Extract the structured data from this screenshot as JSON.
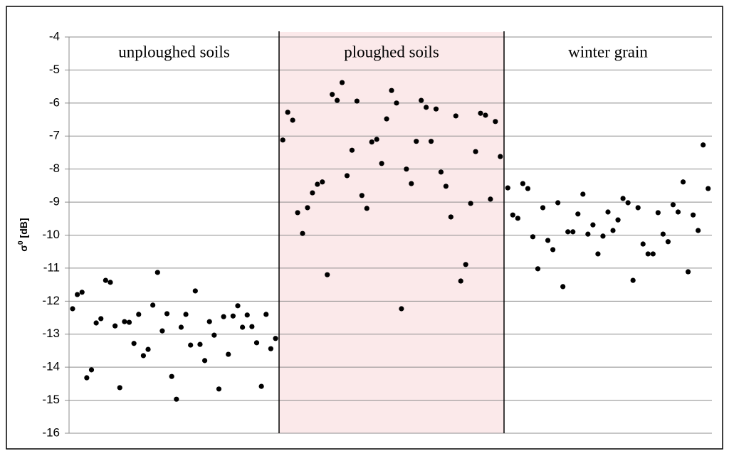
{
  "chart_data": {
    "type": "scatter",
    "y_label": {
      "symbol": "σ",
      "superscript": "0",
      "unit": "[dB]"
    },
    "ylim": [
      -16,
      -4
    ],
    "yticks": [
      -16,
      -15,
      -14,
      -13,
      -12,
      -11,
      -10,
      -9,
      -8,
      -7,
      -6,
      -5,
      -4
    ],
    "grid": true,
    "series": [
      {
        "name": "unploughed soils",
        "color": "#000000",
        "background": "#ffffff",
        "values": [
          -12.23,
          -11.8,
          -11.73,
          -14.32,
          -14.08,
          -12.66,
          -12.53,
          -11.37,
          -11.43,
          -12.75,
          -14.62,
          -12.62,
          -12.64,
          -13.28,
          -12.4,
          -13.65,
          -13.46,
          -12.12,
          -11.13,
          -12.9,
          -12.38,
          -14.28,
          -14.97,
          -12.79,
          -12.4,
          -13.33,
          -11.69,
          -13.31,
          -13.8,
          -12.62,
          -13.03,
          -14.66,
          -12.47,
          -13.61,
          -12.45,
          -12.14,
          -12.79,
          -12.42,
          -12.77,
          -13.26,
          -14.58,
          -12.4,
          -13.44,
          -13.13
        ]
      },
      {
        "name": "ploughed soils",
        "color": "#000000",
        "background": "#fbe9ea",
        "values": [
          -7.12,
          -6.28,
          -6.52,
          -9.32,
          -9.95,
          -9.17,
          -8.72,
          -8.46,
          -8.39,
          -11.2,
          -5.74,
          -5.92,
          -5.38,
          -8.2,
          -7.43,
          -5.94,
          -8.8,
          -9.19,
          -7.18,
          -7.1,
          -7.83,
          -6.48,
          -5.62,
          -6.0,
          -12.23,
          -8.0,
          -8.44,
          -7.16,
          -5.92,
          -6.13,
          -7.16,
          -6.18,
          -8.09,
          -8.52,
          -9.45,
          -6.39,
          -11.39,
          -10.89,
          -9.04,
          -7.47,
          -6.31,
          -6.37,
          -8.91,
          -6.56,
          -7.62
        ]
      },
      {
        "name": "winter grain",
        "color": "#000000",
        "background": "#ffffff",
        "values": [
          -8.57,
          -9.39,
          -9.49,
          -8.44,
          -8.59,
          -10.05,
          -11.02,
          -9.17,
          -10.16,
          -10.44,
          -9.02,
          -11.56,
          -9.9,
          -9.9,
          -9.36,
          -8.76,
          -9.97,
          -9.69,
          -10.57,
          -10.03,
          -9.3,
          -9.86,
          -9.54,
          -8.89,
          -9.02,
          -11.37,
          -9.17,
          -10.27,
          -10.57,
          -10.57,
          -9.32,
          -9.97,
          -10.2,
          -9.08,
          -9.3,
          -8.39,
          -11.11,
          -9.39,
          -9.86,
          -7.27,
          -8.59
        ]
      }
    ]
  }
}
